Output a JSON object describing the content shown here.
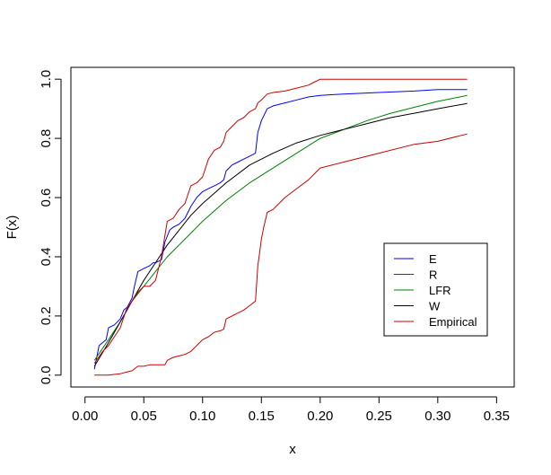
{
  "chart_data": {
    "type": "line",
    "title": "",
    "xlabel": "x",
    "ylabel": "F(x)",
    "xlim": [
      -0.012,
      0.365
    ],
    "ylim": [
      -0.04,
      1.04
    ],
    "x_ticks": [
      0.0,
      0.05,
      0.1,
      0.15,
      0.2,
      0.25,
      0.3,
      0.35
    ],
    "x_tick_labels": [
      "0.00",
      "0.05",
      "0.10",
      "0.15",
      "0.20",
      "0.25",
      "0.30",
      "0.35"
    ],
    "y_ticks": [
      0.0,
      0.2,
      0.4,
      0.6,
      0.8,
      1.0
    ],
    "y_tick_labels": [
      "0.0",
      "0.2",
      "0.4",
      "0.6",
      "0.8",
      "1.0"
    ],
    "grid": false,
    "legend_position": "bottom-right",
    "series": [
      {
        "name": "E",
        "color": "#0000ff",
        "x": [
          0.008,
          0.012,
          0.018,
          0.02,
          0.025,
          0.03,
          0.033,
          0.036,
          0.04,
          0.042,
          0.045,
          0.05,
          0.055,
          0.058,
          0.06,
          0.065,
          0.068,
          0.072,
          0.075,
          0.08,
          0.085,
          0.09,
          0.095,
          0.1,
          0.105,
          0.11,
          0.115,
          0.118,
          0.12,
          0.125,
          0.13,
          0.135,
          0.14,
          0.145,
          0.147,
          0.15,
          0.155,
          0.16,
          0.17,
          0.18,
          0.19,
          0.2,
          0.22,
          0.25,
          0.28,
          0.3,
          0.325
        ],
        "y": [
          0.02,
          0.1,
          0.12,
          0.16,
          0.17,
          0.19,
          0.22,
          0.23,
          0.26,
          0.3,
          0.35,
          0.36,
          0.37,
          0.38,
          0.38,
          0.39,
          0.45,
          0.49,
          0.5,
          0.51,
          0.53,
          0.57,
          0.6,
          0.62,
          0.63,
          0.64,
          0.65,
          0.66,
          0.69,
          0.71,
          0.72,
          0.73,
          0.74,
          0.75,
          0.82,
          0.86,
          0.9,
          0.91,
          0.92,
          0.93,
          0.94,
          0.945,
          0.95,
          0.955,
          0.96,
          0.965,
          0.965
        ]
      },
      {
        "name": "R",
        "color": "#cc0000",
        "x": [
          0.008,
          0.02,
          0.03,
          0.035,
          0.04,
          0.045,
          0.05,
          0.055,
          0.06,
          0.065,
          0.068,
          0.07,
          0.075,
          0.08,
          0.085,
          0.09,
          0.095,
          0.1,
          0.105,
          0.11,
          0.115,
          0.118,
          0.12,
          0.125,
          0.13,
          0.135,
          0.14,
          0.145,
          0.147,
          0.148,
          0.15,
          0.152,
          0.155,
          0.16,
          0.17,
          0.18,
          0.19,
          0.2,
          0.22,
          0.25,
          0.28,
          0.3,
          0.32,
          0.325
        ],
        "y": [
          0.0,
          0.0,
          0.005,
          0.01,
          0.015,
          0.03,
          0.03,
          0.035,
          0.035,
          0.035,
          0.035,
          0.05,
          0.06,
          0.065,
          0.07,
          0.08,
          0.1,
          0.12,
          0.13,
          0.145,
          0.15,
          0.155,
          0.19,
          0.2,
          0.21,
          0.22,
          0.235,
          0.25,
          0.37,
          0.4,
          0.46,
          0.5,
          0.55,
          0.56,
          0.6,
          0.63,
          0.66,
          0.7,
          0.72,
          0.75,
          0.78,
          0.79,
          0.81,
          0.815
        ]
      },
      {
        "name": "LFR",
        "color": "#008000",
        "x": [
          0.008,
          0.02,
          0.03,
          0.04,
          0.05,
          0.06,
          0.07,
          0.08,
          0.09,
          0.1,
          0.12,
          0.14,
          0.16,
          0.18,
          0.2,
          0.22,
          0.24,
          0.26,
          0.28,
          0.3,
          0.325
        ],
        "y": [
          0.05,
          0.12,
          0.18,
          0.25,
          0.3,
          0.35,
          0.4,
          0.44,
          0.48,
          0.52,
          0.59,
          0.65,
          0.7,
          0.75,
          0.8,
          0.83,
          0.86,
          0.885,
          0.905,
          0.925,
          0.945
        ]
      },
      {
        "name": "W",
        "color": "#000000",
        "x": [
          0.008,
          0.02,
          0.03,
          0.04,
          0.05,
          0.06,
          0.07,
          0.08,
          0.09,
          0.1,
          0.12,
          0.14,
          0.16,
          0.18,
          0.2,
          0.22,
          0.24,
          0.26,
          0.28,
          0.3,
          0.325
        ],
        "y": [
          0.03,
          0.11,
          0.18,
          0.25,
          0.32,
          0.38,
          0.44,
          0.49,
          0.54,
          0.58,
          0.65,
          0.71,
          0.75,
          0.785,
          0.81,
          0.83,
          0.85,
          0.87,
          0.885,
          0.9,
          0.918
        ]
      },
      {
        "name": "Empirical",
        "color": "#cc0000",
        "x": [
          0.008,
          0.015,
          0.02,
          0.025,
          0.03,
          0.035,
          0.04,
          0.045,
          0.05,
          0.055,
          0.06,
          0.065,
          0.07,
          0.075,
          0.08,
          0.085,
          0.09,
          0.095,
          0.1,
          0.105,
          0.11,
          0.115,
          0.118,
          0.12,
          0.125,
          0.13,
          0.135,
          0.14,
          0.145,
          0.147,
          0.15,
          0.155,
          0.16,
          0.17,
          0.18,
          0.19,
          0.195,
          0.2,
          0.22,
          0.25,
          0.28,
          0.3,
          0.325
        ],
        "y": [
          0.04,
          0.08,
          0.1,
          0.13,
          0.16,
          0.22,
          0.25,
          0.28,
          0.3,
          0.3,
          0.32,
          0.4,
          0.52,
          0.53,
          0.56,
          0.58,
          0.64,
          0.65,
          0.67,
          0.73,
          0.76,
          0.77,
          0.79,
          0.82,
          0.84,
          0.86,
          0.87,
          0.89,
          0.9,
          0.92,
          0.93,
          0.95,
          0.955,
          0.96,
          0.97,
          0.98,
          0.99,
          1.0,
          1.0,
          1.0,
          1.0,
          1.0,
          1.0
        ]
      }
    ]
  }
}
